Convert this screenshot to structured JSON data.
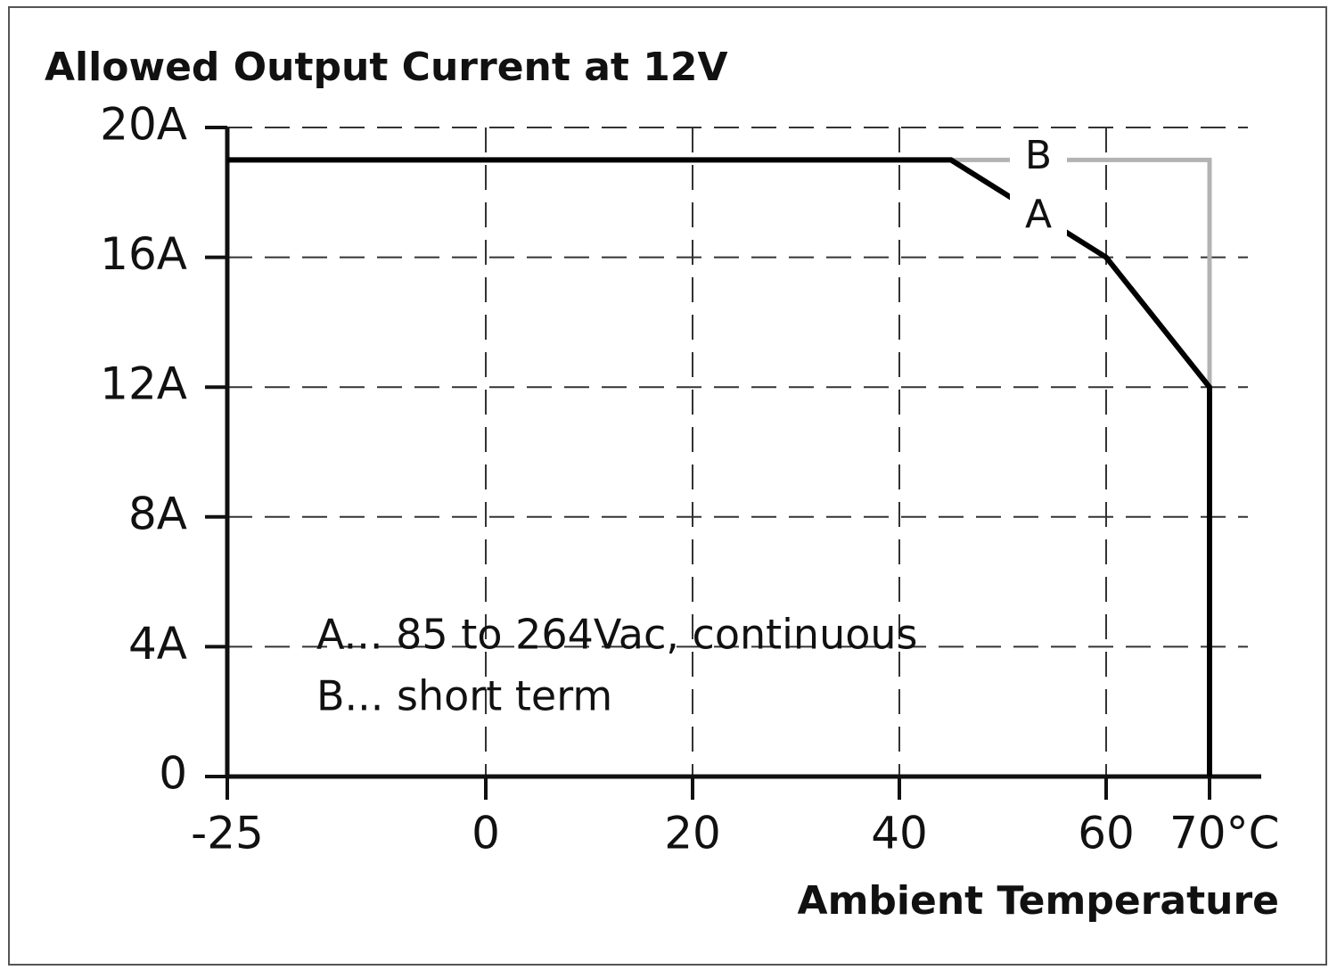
{
  "chart_data": {
    "type": "line",
    "title": "Allowed Output Current at 12V",
    "x_label": "Ambient Temperature",
    "series": [
      {
        "name": "A",
        "color": "#000000",
        "x": [
          -25,
          45,
          60,
          70,
          70
        ],
        "values": [
          19,
          19,
          16,
          12,
          0
        ]
      },
      {
        "name": "B",
        "color": "#b3b3b3",
        "x": [
          45,
          70,
          70
        ],
        "values": [
          19,
          19,
          12
        ]
      }
    ],
    "xlim": [
      -25,
      75
    ],
    "ylim": [
      0,
      20
    ],
    "xticks": [
      -25,
      0,
      20,
      40,
      60,
      {
        "value": 70,
        "label": "70°C"
      }
    ],
    "yticks": [
      0,
      {
        "value": 4,
        "label": "4A"
      },
      {
        "value": 8,
        "label": "8A"
      },
      {
        "value": 12,
        "label": "12A"
      },
      {
        "value": 16,
        "label": "16A"
      },
      {
        "value": 20,
        "label": "20A"
      }
    ],
    "grid": true,
    "annotations": [
      "A... 85 to 264Vac, continuous",
      "B... short term"
    ]
  }
}
